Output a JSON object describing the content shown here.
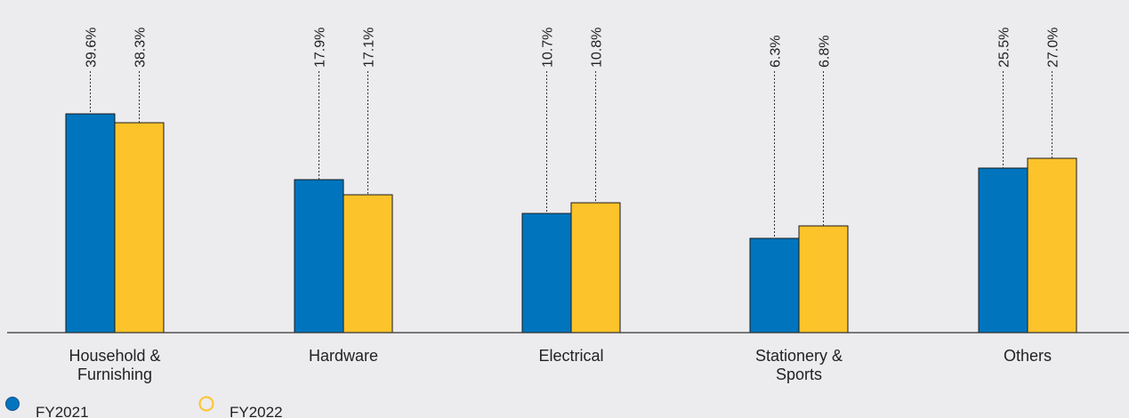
{
  "chart_data": {
    "type": "bar",
    "categories": [
      [
        "Household &",
        "Furnishing"
      ],
      [
        "Hardware"
      ],
      [
        "Electrical"
      ],
      [
        "Stationery &",
        "Sports"
      ],
      [
        "Others"
      ]
    ],
    "series": [
      {
        "name": "FY2021",
        "color": "#0075BE",
        "values": [
          39.6,
          17.9,
          10.7,
          6.3,
          25.5
        ],
        "labels": [
          "39.6%",
          "17.9%",
          "10.7%",
          "6.3%",
          "25.5%"
        ]
      },
      {
        "name": "FY2022",
        "color": "#FDC32A",
        "values": [
          38.3,
          17.1,
          10.8,
          6.8,
          27.0
        ],
        "labels": [
          "38.3%",
          "17.1%",
          "10.8%",
          "6.8%",
          "27.0%"
        ]
      }
    ],
    "legend_position": "bottom-left",
    "grid": false
  }
}
